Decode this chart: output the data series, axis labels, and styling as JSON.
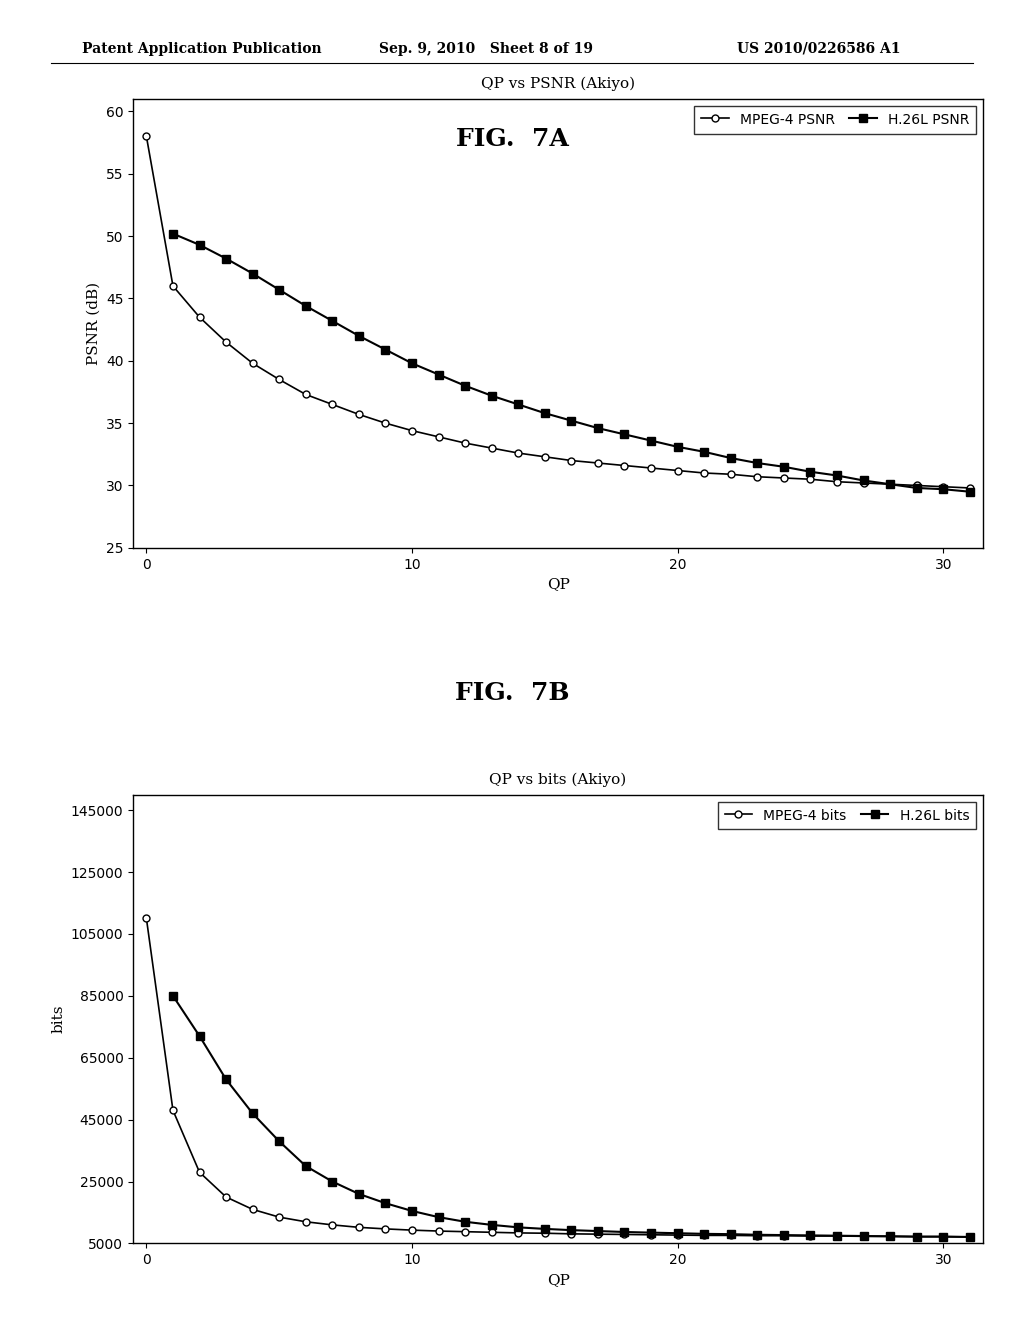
{
  "fig7a_title": "QP vs PSNR (Akiyo)",
  "fig7b_title": "QP vs bits (Akiyo)",
  "fig7a_label": "FIG.  7A",
  "fig7b_label": "FIG.  7B",
  "xlabel": "QP",
  "fig7a_ylabel": "PSNR (dB)",
  "fig7b_ylabel": "bits",
  "header_left": "Patent Application Publication",
  "header_center": "Sep. 9, 2010   Sheet 8 of 19",
  "header_right": "US 2010/0226586 A1",
  "fig7a_xlim": [
    -0.5,
    31.5
  ],
  "fig7a_ylim": [
    25,
    61
  ],
  "fig7a_yticks": [
    25,
    30,
    35,
    40,
    45,
    50,
    55,
    60
  ],
  "fig7a_xticks": [
    0,
    10,
    20,
    30
  ],
  "fig7b_xlim": [
    -0.5,
    31.5
  ],
  "fig7b_ylim": [
    5000,
    150000
  ],
  "fig7b_yticks": [
    5000,
    25000,
    45000,
    65000,
    85000,
    105000,
    125000,
    145000
  ],
  "fig7b_xticks": [
    0,
    10,
    20,
    30
  ],
  "mpeg4_psnr_x": [
    0,
    1,
    2,
    3,
    4,
    5,
    6,
    7,
    8,
    9,
    10,
    11,
    12,
    13,
    14,
    15,
    16,
    17,
    18,
    19,
    20,
    21,
    22,
    23,
    24,
    25,
    26,
    27,
    28,
    29,
    30,
    31
  ],
  "mpeg4_psnr_y": [
    58.0,
    46.0,
    43.5,
    41.5,
    39.8,
    38.5,
    37.3,
    36.5,
    35.7,
    35.0,
    34.4,
    33.9,
    33.4,
    33.0,
    32.6,
    32.3,
    32.0,
    31.8,
    31.6,
    31.4,
    31.2,
    31.0,
    30.9,
    30.7,
    30.6,
    30.5,
    30.3,
    30.2,
    30.1,
    30.0,
    29.9,
    29.8
  ],
  "h26l_psnr_x": [
    1,
    2,
    3,
    4,
    5,
    6,
    7,
    8,
    9,
    10,
    11,
    12,
    13,
    14,
    15,
    16,
    17,
    18,
    19,
    20,
    21,
    22,
    23,
    24,
    25,
    26,
    27,
    28,
    29,
    30,
    31
  ],
  "h26l_psnr_y": [
    50.2,
    49.3,
    48.2,
    47.0,
    45.7,
    44.4,
    43.2,
    42.0,
    40.9,
    39.8,
    38.9,
    38.0,
    37.2,
    36.5,
    35.8,
    35.2,
    34.6,
    34.1,
    33.6,
    33.1,
    32.7,
    32.2,
    31.8,
    31.5,
    31.1,
    30.8,
    30.4,
    30.1,
    29.8,
    29.7,
    29.5
  ],
  "mpeg4_bits_x": [
    0,
    1,
    2,
    3,
    4,
    5,
    6,
    7,
    8,
    9,
    10,
    11,
    12,
    13,
    14,
    15,
    16,
    17,
    18,
    19,
    20,
    21,
    22,
    23,
    24,
    25,
    26,
    27,
    28,
    29,
    30,
    31
  ],
  "mpeg4_bits_y": [
    110000,
    48000,
    28000,
    20000,
    16000,
    13500,
    12000,
    11000,
    10200,
    9700,
    9300,
    9000,
    8800,
    8600,
    8400,
    8300,
    8100,
    8000,
    7900,
    7800,
    7700,
    7600,
    7600,
    7500,
    7500,
    7400,
    7400,
    7300,
    7300,
    7200,
    7200,
    7100
  ],
  "h26l_bits_x": [
    1,
    2,
    3,
    4,
    5,
    6,
    7,
    8,
    9,
    10,
    11,
    12,
    13,
    14,
    15,
    16,
    17,
    18,
    19,
    20,
    21,
    22,
    23,
    24,
    25,
    26,
    27,
    28,
    29,
    30,
    31
  ],
  "h26l_bits_y": [
    85000,
    72000,
    58000,
    47000,
    38000,
    30000,
    25000,
    21000,
    18000,
    15500,
    13500,
    12000,
    11000,
    10200,
    9700,
    9300,
    9000,
    8700,
    8500,
    8300,
    8100,
    8000,
    7800,
    7700,
    7600,
    7500,
    7400,
    7300,
    7200,
    7200,
    7100
  ],
  "line_color": "#000000",
  "background_color": "#ffffff"
}
